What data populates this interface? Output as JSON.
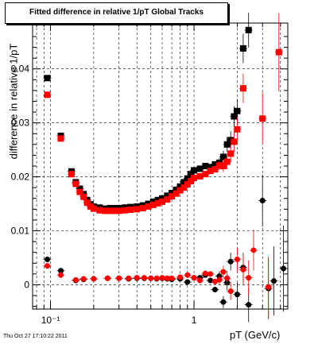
{
  "title": "Fitted difference in relative 1/pT  Global Tracks",
  "timestamp": "Thu Oct 27 17:10:22 2011",
  "chart_data": {
    "type": "scatter",
    "title": "Fitted difference in relative 1/pT  Global Tracks",
    "xlabel": "pT (GeV/c)",
    "ylabel": "difference in relative 1/pT",
    "xscale": "log",
    "xlim": [
      0.075,
      4.5
    ],
    "ylim": [
      -0.0045,
      0.0485
    ],
    "grid": true,
    "x_tick_labels": [
      {
        "value": 0.1,
        "label": "10⁻¹"
      },
      {
        "value": 1,
        "label": "1"
      }
    ],
    "y_ticks": [
      0,
      0.01,
      0.02,
      0.03,
      0.04
    ],
    "y_tick_labels": [
      "0",
      "0.01",
      "0.02",
      "0.03",
      "0.04"
    ],
    "series": [
      {
        "color": "#000000",
        "upper": [
          [
            0.095,
            0.0383
          ],
          [
            0.118,
            0.0276
          ],
          [
            0.14,
            0.021
          ],
          [
            0.15,
            0.019
          ],
          [
            0.16,
            0.0178
          ],
          [
            0.17,
            0.0168
          ],
          [
            0.18,
            0.0157
          ],
          [
            0.19,
            0.0149
          ],
          [
            0.2,
            0.0145
          ],
          [
            0.22,
            0.0143
          ],
          [
            0.24,
            0.0141
          ],
          [
            0.26,
            0.0142
          ],
          [
            0.28,
            0.0142
          ],
          [
            0.3,
            0.0142
          ],
          [
            0.33,
            0.0143
          ],
          [
            0.36,
            0.0144
          ],
          [
            0.4,
            0.0145
          ],
          [
            0.44,
            0.0147
          ],
          [
            0.48,
            0.015
          ],
          [
            0.52,
            0.0154
          ],
          [
            0.56,
            0.0157
          ],
          [
            0.6,
            0.016
          ],
          [
            0.65,
            0.0165
          ],
          [
            0.7,
            0.017
          ],
          [
            0.75,
            0.0176
          ],
          [
            0.8,
            0.0182
          ],
          [
            0.85,
            0.019
          ],
          [
            0.9,
            0.0197
          ],
          [
            0.95,
            0.0205
          ],
          [
            1.0,
            0.0212
          ],
          [
            1.1,
            0.0215
          ],
          [
            1.2,
            0.022
          ],
          [
            1.3,
            0.0218
          ],
          [
            1.4,
            0.0223
          ],
          [
            1.5,
            0.0226
          ],
          [
            1.6,
            0.0237
          ],
          [
            1.7,
            0.026
          ],
          [
            1.8,
            0.0268
          ],
          [
            1.9,
            0.0312
          ],
          [
            2.0,
            0.0322
          ],
          [
            2.2,
            0.0438
          ],
          [
            2.4,
            0.0472
          ]
        ],
        "lower": [
          [
            0.095,
            0.0047
          ],
          [
            0.118,
            0.0026
          ],
          [
            0.15,
            0.0008
          ],
          [
            0.17,
            0.001
          ],
          [
            0.2,
            0.0011
          ],
          [
            0.25,
            0.0012
          ],
          [
            0.3,
            0.0012
          ],
          [
            0.35,
            0.0011
          ],
          [
            0.4,
            0.0012
          ],
          [
            0.45,
            0.0012
          ],
          [
            0.5,
            0.0012
          ],
          [
            0.55,
            0.0011
          ],
          [
            0.6,
            0.0012
          ],
          [
            0.65,
            0.0011
          ],
          [
            0.7,
            0.001
          ],
          [
            0.8,
            0.0011
          ],
          [
            0.9,
            0.0005
          ],
          [
            1.0,
            0.0013
          ],
          [
            1.1,
            0.0013
          ],
          [
            1.2,
            0.0018
          ],
          [
            1.3,
            0.0008
          ],
          [
            1.4,
            -0.0009
          ],
          [
            1.5,
            0.0016
          ],
          [
            1.6,
            -0.0032
          ],
          [
            1.7,
            0.0004
          ],
          [
            1.8,
            0.0043
          ],
          [
            2.0,
            -0.0018
          ],
          [
            2.2,
            0.0032
          ],
          [
            2.4,
            -0.0037
          ],
          [
            3.3,
            -0.0007
          ],
          [
            3.6,
            0.0007
          ],
          [
            3.0,
            0.0156
          ],
          [
            4.2,
            0.003
          ]
        ]
      },
      {
        "color": "#ff0000",
        "upper": [
          [
            0.095,
            0.0352
          ],
          [
            0.118,
            0.0271
          ],
          [
            0.14,
            0.0205
          ],
          [
            0.15,
            0.0187
          ],
          [
            0.16,
            0.0172
          ],
          [
            0.17,
            0.0163
          ],
          [
            0.18,
            0.0152
          ],
          [
            0.19,
            0.0145
          ],
          [
            0.2,
            0.0141
          ],
          [
            0.22,
            0.0138
          ],
          [
            0.24,
            0.0137
          ],
          [
            0.26,
            0.0137
          ],
          [
            0.28,
            0.0137
          ],
          [
            0.3,
            0.0137
          ],
          [
            0.33,
            0.0138
          ],
          [
            0.36,
            0.0139
          ],
          [
            0.4,
            0.014
          ],
          [
            0.44,
            0.0142
          ],
          [
            0.48,
            0.0145
          ],
          [
            0.52,
            0.0148
          ],
          [
            0.56,
            0.0151
          ],
          [
            0.6,
            0.0154
          ],
          [
            0.65,
            0.0158
          ],
          [
            0.7,
            0.0164
          ],
          [
            0.75,
            0.0169
          ],
          [
            0.8,
            0.0175
          ],
          [
            0.85,
            0.018
          ],
          [
            0.9,
            0.0186
          ],
          [
            0.95,
            0.0192
          ],
          [
            1.0,
            0.0198
          ],
          [
            1.1,
            0.0201
          ],
          [
            1.2,
            0.0205
          ],
          [
            1.3,
            0.0211
          ],
          [
            1.4,
            0.0214
          ],
          [
            1.5,
            0.0221
          ],
          [
            1.6,
            0.022
          ],
          [
            1.7,
            0.0228
          ],
          [
            1.8,
            0.0243
          ],
          [
            1.9,
            0.0265
          ],
          [
            2.0,
            0.0288
          ],
          [
            2.2,
            0.0364
          ],
          [
            3.0,
            0.0308
          ],
          [
            3.9,
            0.0431
          ]
        ],
        "lower": [
          [
            0.095,
            0.0035
          ],
          [
            0.118,
            0.0018
          ],
          [
            0.15,
            0.0009
          ],
          [
            0.17,
            0.0011
          ],
          [
            0.2,
            0.0011
          ],
          [
            0.25,
            0.0012
          ],
          [
            0.3,
            0.0012
          ],
          [
            0.35,
            0.0012
          ],
          [
            0.4,
            0.0013
          ],
          [
            0.45,
            0.0013
          ],
          [
            0.5,
            0.0012
          ],
          [
            0.55,
            0.0012
          ],
          [
            0.6,
            0.0013
          ],
          [
            0.65,
            0.0012
          ],
          [
            0.7,
            0.0012
          ],
          [
            0.8,
            0.0014
          ],
          [
            0.9,
            0.0018
          ],
          [
            1.0,
            0.0013
          ],
          [
            1.1,
            0.0008
          ],
          [
            1.2,
            0.0021
          ],
          [
            1.3,
            0.002
          ],
          [
            1.4,
            0.0006
          ],
          [
            1.5,
            0.0009
          ],
          [
            1.6,
            0.0024
          ],
          [
            1.7,
            0.0012
          ],
          [
            1.8,
            -0.0012
          ],
          [
            2.0,
            0.0047
          ],
          [
            2.2,
            0.0028
          ],
          [
            2.4,
            0.0013
          ],
          [
            2.6,
            0.0064
          ],
          [
            3.3,
            -0.0004
          ]
        ]
      }
    ]
  }
}
